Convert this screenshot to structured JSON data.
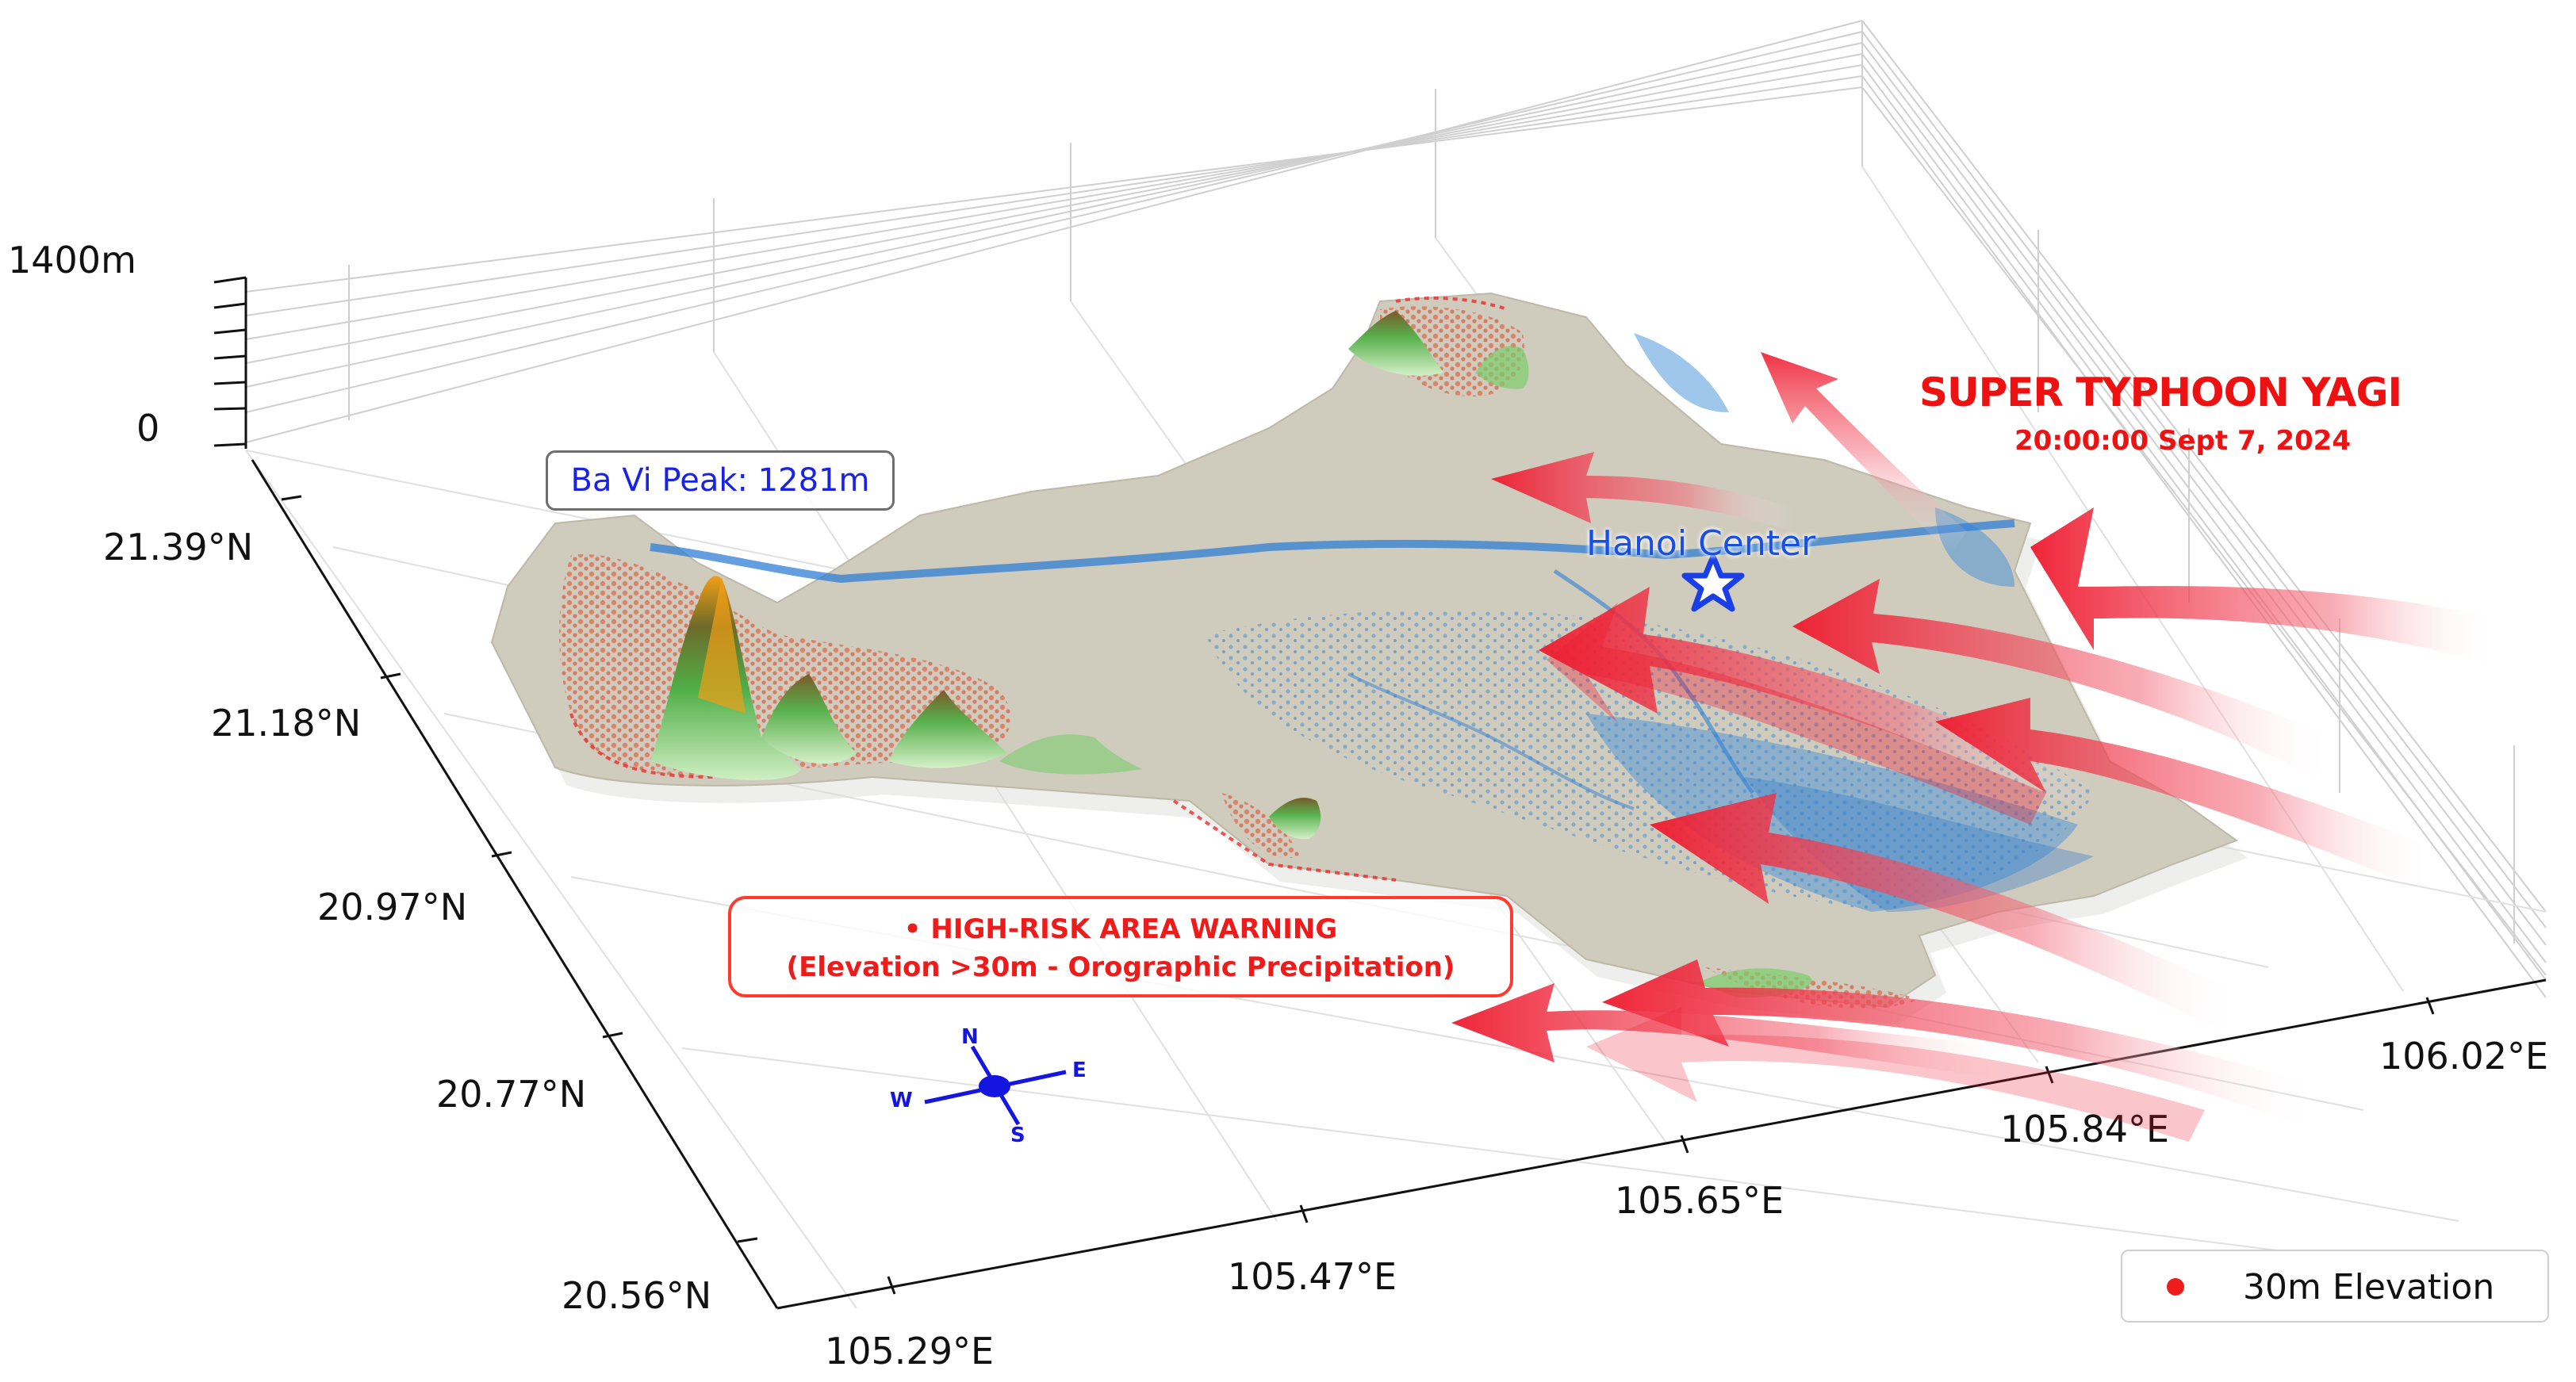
{
  "elevation_axis": {
    "ticks": [
      "1400m",
      "0"
    ]
  },
  "latitude_axis": {
    "ticks": [
      "21.39°N",
      "21.18°N",
      "20.97°N",
      "20.77°N",
      "20.56°N"
    ]
  },
  "longitude_axis": {
    "ticks": [
      "105.29°E",
      "105.47°E",
      "105.65°E",
      "105.84°E",
      "106.02°E"
    ]
  },
  "annotations": {
    "peak_label": "Ba Vi Peak: 1281m",
    "city_label": "Hanoi Center",
    "typhoon_title": "SUPER TYPHOON YAGI",
    "typhoon_time": "20:00:00 Sept 7, 2024",
    "warning_line1": "• HIGH-RISK AREA WARNING",
    "warning_line2": "(Elevation >30m - Orographic Precipitation)"
  },
  "compass": {
    "n": "N",
    "s": "S",
    "e": "E",
    "w": "W"
  },
  "legend": {
    "label": "30m Elevation",
    "color": "#ee1c1c"
  },
  "colors": {
    "terrain_base": "#cfcbbd",
    "water": "#3f8fd9",
    "high_terrain": "#e07a5a",
    "mountain_low": "#7ccd6e",
    "mountain_high": "#f0a020",
    "typhoon_arrow": "#ee1a2e",
    "city_marker": "#1a3fe6"
  },
  "icons": {
    "city_marker": "star-icon",
    "compass": "compass-icon"
  }
}
